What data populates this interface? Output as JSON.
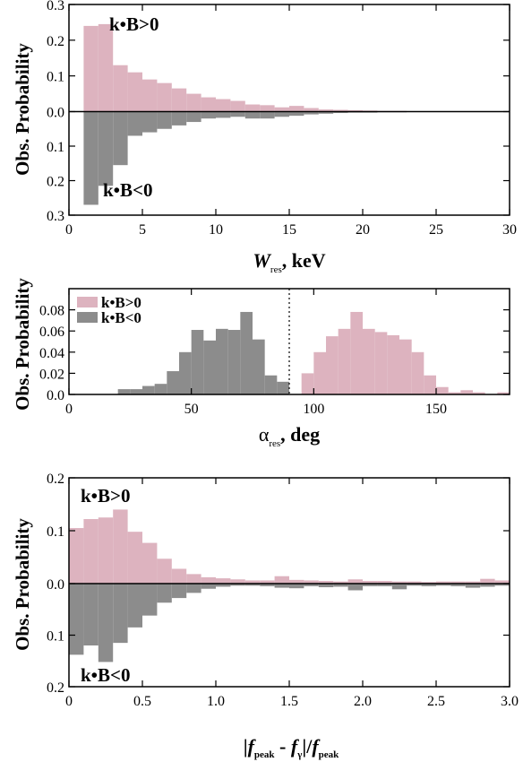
{
  "colors": {
    "pos": "#ddb3bf",
    "neg": "#8c8c8c",
    "axis": "#000000"
  },
  "chart_data": [
    {
      "type": "bar",
      "mirrored": true,
      "ylabel": "Obs. Probability",
      "xlabel": {
        "sym": "W",
        "sub": "res",
        "rest": ", keV"
      },
      "xlim": [
        0,
        30
      ],
      "ylim_top": 0.3,
      "ylim_bottom": 0.3,
      "xticks": [
        0,
        5,
        10,
        15,
        20,
        25,
        30
      ],
      "xtick_labels": [
        "0",
        "5",
        "10",
        "15",
        "20",
        "25",
        "30"
      ],
      "yticks_top": [
        0.0,
        0.1,
        0.2,
        0.3
      ],
      "ytick_labels_top": [
        "0.0",
        "0.1",
        "0.2",
        "0.3"
      ],
      "yticks_bottom": [
        0.1,
        0.2,
        0.3
      ],
      "ytick_labels_bottom": [
        "0.1",
        "0.2",
        "0.3"
      ],
      "bin_start": 1,
      "bin_width": 1,
      "series": [
        {
          "name": "k•B>0",
          "values": [
            0.24,
            0.245,
            0.13,
            0.11,
            0.09,
            0.08,
            0.065,
            0.05,
            0.04,
            0.035,
            0.03,
            0.02,
            0.018,
            0.012,
            0.016,
            0.01,
            0.006,
            0.005,
            0.004,
            0.003,
            0.002,
            0.002,
            0.001,
            0.001,
            0.001,
            0.001,
            0.001,
            0.0,
            0.0
          ]
        },
        {
          "name": "k•B<0",
          "values": [
            0.27,
            0.215,
            0.155,
            0.07,
            0.06,
            0.05,
            0.04,
            0.03,
            0.02,
            0.018,
            0.015,
            0.02,
            0.02,
            0.015,
            0.012,
            0.008,
            0.006,
            0.004,
            0.003,
            0.003,
            0.002,
            0.002,
            0.001,
            0.001,
            0.001,
            0.001,
            0.0,
            0.0,
            0.0
          ]
        }
      ],
      "annotations": [
        "k•B>0",
        "k•B<0"
      ]
    },
    {
      "type": "bar",
      "ylabel": "Obs. Probability",
      "xlabel": {
        "sym": "α",
        "sub": "res",
        "rest": ", deg"
      },
      "xlim": [
        0,
        180
      ],
      "ylim": [
        0,
        0.1
      ],
      "xticks": [
        0,
        50,
        100,
        150
      ],
      "xtick_labels": [
        "0",
        "50",
        "100",
        "150"
      ],
      "yticks": [
        0.0,
        0.02,
        0.04,
        0.06,
        0.08
      ],
      "ytick_labels": [
        "0.0",
        "0.02",
        "0.04",
        "0.06",
        "0.08"
      ],
      "vline": 90,
      "legend": "top-left",
      "series": [
        {
          "name": "k•B>0",
          "bin_start": 95,
          "bin_width": 5,
          "values": [
            0.02,
            0.04,
            0.055,
            0.062,
            0.078,
            0.062,
            0.059,
            0.056,
            0.052,
            0.04,
            0.018,
            0.007,
            0.002,
            0.004,
            0.002,
            0.0,
            0.002
          ]
        },
        {
          "name": "k•B<0",
          "bin_start": 20,
          "bin_width": 5,
          "values": [
            0.005,
            0.005,
            0.008,
            0.01,
            0.022,
            0.04,
            0.061,
            0.051,
            0.062,
            0.061,
            0.078,
            0.052,
            0.018,
            0.012
          ]
        }
      ]
    },
    {
      "type": "bar",
      "mirrored": true,
      "ylabel": "Obs. Probability",
      "xlabel": {
        "text": "|f_peak - f_γ|/f_peak"
      },
      "xlim": [
        0,
        3
      ],
      "ylim_top": 0.2,
      "ylim_bottom": 0.2,
      "xticks": [
        0,
        0.5,
        1.0,
        1.5,
        2.0,
        2.5,
        3.0
      ],
      "xtick_labels": [
        "0",
        "0.5",
        "1.0",
        "1.5",
        "2.0",
        "2.5",
        "3.0"
      ],
      "yticks_top": [
        0.0,
        0.1,
        0.2
      ],
      "ytick_labels_top": [
        "0.0",
        "0.1",
        "0.2"
      ],
      "yticks_bottom": [
        0.1,
        0.2
      ],
      "ytick_labels_bottom": [
        "0.1",
        "0.2"
      ],
      "bin_start": 0,
      "bin_width": 0.1,
      "series": [
        {
          "name": "k•B>0",
          "values": [
            0.105,
            0.122,
            0.125,
            0.14,
            0.098,
            0.077,
            0.047,
            0.028,
            0.018,
            0.012,
            0.01,
            0.008,
            0.006,
            0.006,
            0.014,
            0.007,
            0.006,
            0.005,
            0.004,
            0.008,
            0.005,
            0.005,
            0.004,
            0.004,
            0.003,
            0.004,
            0.004,
            0.004,
            0.009,
            0.006
          ]
        },
        {
          "name": "k•B<0",
          "values": [
            0.138,
            0.12,
            0.152,
            0.115,
            0.085,
            0.062,
            0.037,
            0.028,
            0.018,
            0.01,
            0.006,
            0.004,
            0.004,
            0.005,
            0.008,
            0.009,
            0.005,
            0.007,
            0.006,
            0.013,
            0.005,
            0.005,
            0.011,
            0.004,
            0.005,
            0.004,
            0.005,
            0.008,
            0.006,
            0.004
          ]
        }
      ],
      "annotations": [
        "k•B>0",
        "k•B<0"
      ]
    }
  ]
}
